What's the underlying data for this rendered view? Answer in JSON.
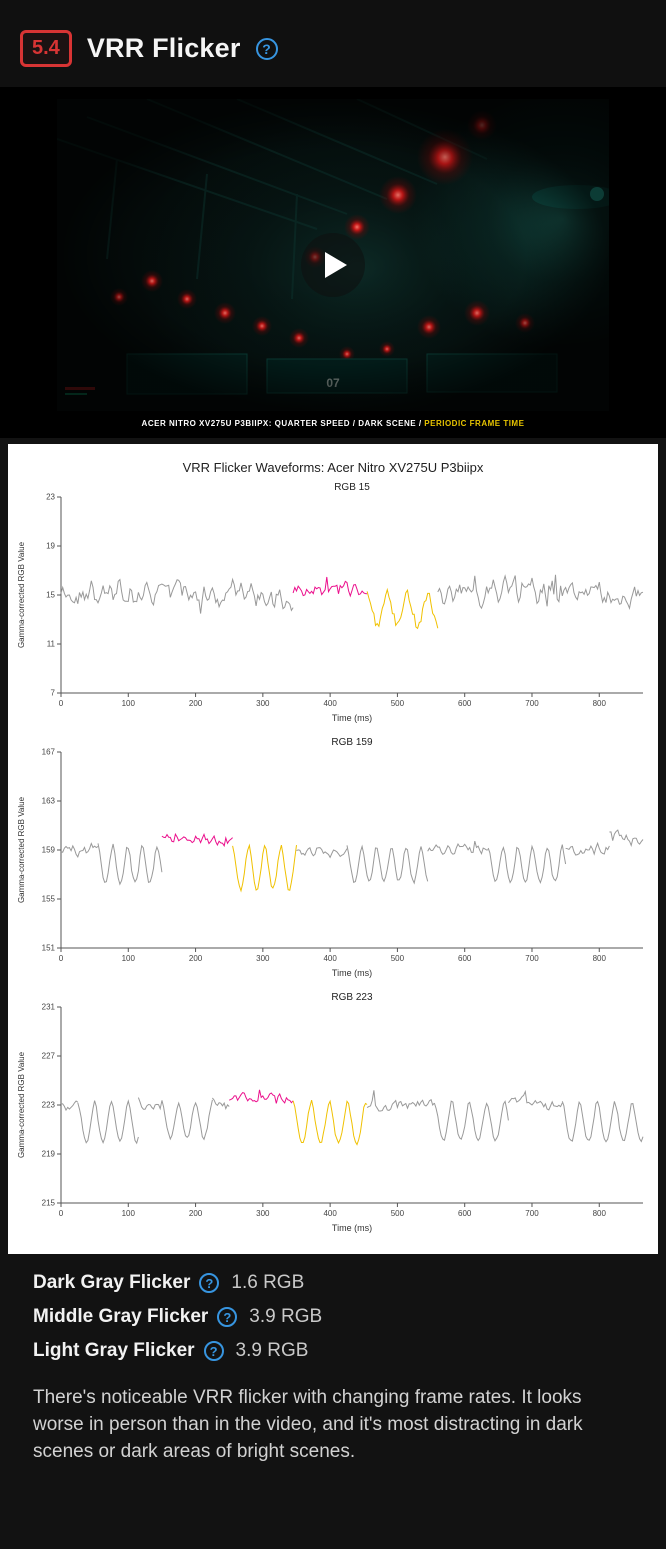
{
  "header": {
    "score": "5.4",
    "title": "VRR Flicker"
  },
  "icons": {
    "question": "?"
  },
  "video": {
    "caption_main": "ACER NITRO XV275U P3BIIPX: QUARTER SPEED / DARK SCENE / ",
    "caption_highlight": "PERIODIC FRAME TIME",
    "overlay_text": "07"
  },
  "waveform_panel": {
    "title": "VRR Flicker Waveforms: Acer Nitro XV275U P3biipx"
  },
  "colors": {
    "accent_red": "#d83434",
    "help_blue": "#3795e0",
    "line_gray": "#999999",
    "line_pink": "#eb0f8c",
    "line_yellow": "#f0c100"
  },
  "chart_data": [
    {
      "type": "line",
      "title": "RGB 15",
      "xlabel": "Time (ms)",
      "ylabel": "Gamma-corrected RGB Value",
      "xlim": [
        0,
        865
      ],
      "ylim": [
        7,
        23
      ],
      "xticks": [
        0,
        100,
        200,
        300,
        400,
        500,
        600,
        700,
        800
      ],
      "yticks": [
        7,
        11,
        15,
        19,
        23
      ],
      "grid": false,
      "legend": null,
      "segments": [
        {
          "kind": "noise",
          "x0": 0,
          "x1": 345,
          "color": "gray",
          "base": 15.0,
          "amp": 1.1
        },
        {
          "kind": "noise",
          "x0": 345,
          "x1": 455,
          "color": "pink",
          "base": 15.6,
          "amp": 0.6
        },
        {
          "kind": "dips",
          "x0": 455,
          "x1": 560,
          "color": "yellow",
          "top": 15.2,
          "depth": 2.6,
          "period": 30,
          "noise": 0.35
        },
        {
          "kind": "noise",
          "x0": 560,
          "x1": 865,
          "color": "gray",
          "base": 15.0,
          "amp": 1.1
        }
      ]
    },
    {
      "type": "line",
      "title": "RGB 159",
      "xlabel": "Time (ms)",
      "ylabel": "Gamma-corrected RGB Value",
      "xlim": [
        0,
        865
      ],
      "ylim": [
        151,
        167
      ],
      "xticks": [
        0,
        100,
        200,
        300,
        400,
        500,
        600,
        700,
        800
      ],
      "yticks": [
        151,
        155,
        159,
        163,
        167
      ],
      "grid": false,
      "legend": null,
      "segments": [
        {
          "kind": "noise",
          "x0": 0,
          "x1": 55,
          "color": "gray",
          "base": 159.0,
          "amp": 0.5
        },
        {
          "kind": "dips",
          "x0": 55,
          "x1": 150,
          "color": "gray",
          "top": 159.4,
          "depth": 3.1,
          "period": 22,
          "noise": 0.15
        },
        {
          "kind": "noise",
          "x0": 150,
          "x1": 255,
          "color": "pink",
          "base": 159.8,
          "amp": 0.45
        },
        {
          "kind": "dips",
          "x0": 255,
          "x1": 350,
          "color": "yellow",
          "top": 159.4,
          "depth": 3.6,
          "period": 24,
          "noise": 0.15
        },
        {
          "kind": "noise",
          "x0": 350,
          "x1": 425,
          "color": "gray",
          "base": 159.0,
          "amp": 0.45
        },
        {
          "kind": "dips",
          "x0": 425,
          "x1": 545,
          "color": "gray",
          "top": 159.3,
          "depth": 2.9,
          "period": 22,
          "noise": 0.15
        },
        {
          "kind": "noise",
          "x0": 545,
          "x1": 635,
          "color": "gray",
          "base": 159.0,
          "amp": 0.45
        },
        {
          "kind": "dips",
          "x0": 635,
          "x1": 750,
          "color": "gray",
          "top": 159.3,
          "depth": 2.9,
          "period": 22,
          "noise": 0.15
        },
        {
          "kind": "noise",
          "x0": 750,
          "x1": 815,
          "color": "gray",
          "base": 159.1,
          "amp": 0.5
        },
        {
          "kind": "noise",
          "x0": 815,
          "x1": 865,
          "color": "gray",
          "base": 160.2,
          "amp": 0.7
        }
      ]
    },
    {
      "type": "line",
      "title": "RGB 223",
      "xlabel": "Time (ms)",
      "ylabel": "Gamma-corrected RGB Value",
      "xlim": [
        0,
        865
      ],
      "ylim": [
        215,
        231
      ],
      "xticks": [
        0,
        100,
        200,
        300,
        400,
        500,
        600,
        700,
        800
      ],
      "yticks": [
        215,
        219,
        223,
        227,
        231
      ],
      "grid": false,
      "legend": null,
      "segments": [
        {
          "kind": "noise",
          "x0": 0,
          "x1": 25,
          "color": "gray",
          "base": 223.2,
          "amp": 0.6
        },
        {
          "kind": "dips",
          "x0": 25,
          "x1": 115,
          "color": "gray",
          "top": 223.3,
          "depth": 3.3,
          "period": 25,
          "noise": 0.15
        },
        {
          "kind": "noise",
          "x0": 115,
          "x1": 150,
          "color": "gray",
          "base": 223.0,
          "amp": 0.5
        },
        {
          "kind": "dips",
          "x0": 150,
          "x1": 225,
          "color": "gray",
          "top": 223.3,
          "depth": 3.0,
          "period": 25,
          "noise": 0.15
        },
        {
          "kind": "noise",
          "x0": 225,
          "x1": 250,
          "color": "gray",
          "base": 223.0,
          "amp": 0.5
        },
        {
          "kind": "noise",
          "x0": 250,
          "x1": 345,
          "color": "pink",
          "base": 223.6,
          "amp": 0.4
        },
        {
          "kind": "dips",
          "x0": 345,
          "x1": 455,
          "color": "yellow",
          "top": 223.3,
          "depth": 3.4,
          "period": 27,
          "noise": 0.15
        },
        {
          "kind": "noise",
          "x0": 455,
          "x1": 555,
          "color": "gray",
          "base": 223.0,
          "amp": 0.5
        },
        {
          "kind": "dips",
          "x0": 555,
          "x1": 665,
          "color": "gray",
          "top": 223.3,
          "depth": 3.2,
          "period": 26,
          "noise": 0.15
        },
        {
          "kind": "noise",
          "x0": 665,
          "x1": 745,
          "color": "gray",
          "base": 223.0,
          "amp": 0.5
        },
        {
          "kind": "dips",
          "x0": 745,
          "x1": 865,
          "color": "gray",
          "top": 223.3,
          "depth": 3.3,
          "period": 26,
          "noise": 0.15
        }
      ]
    }
  ],
  "metrics": [
    {
      "label": "Dark Gray Flicker",
      "value": "1.6 RGB"
    },
    {
      "label": "Middle Gray Flicker",
      "value": "3.9 RGB"
    },
    {
      "label": "Light Gray Flicker",
      "value": "3.9 RGB"
    }
  ],
  "description": "There's noticeable VRR flicker with changing frame rates. It looks worse in person than in the video, and it's most distracting in dark scenes or dark areas of bright scenes."
}
